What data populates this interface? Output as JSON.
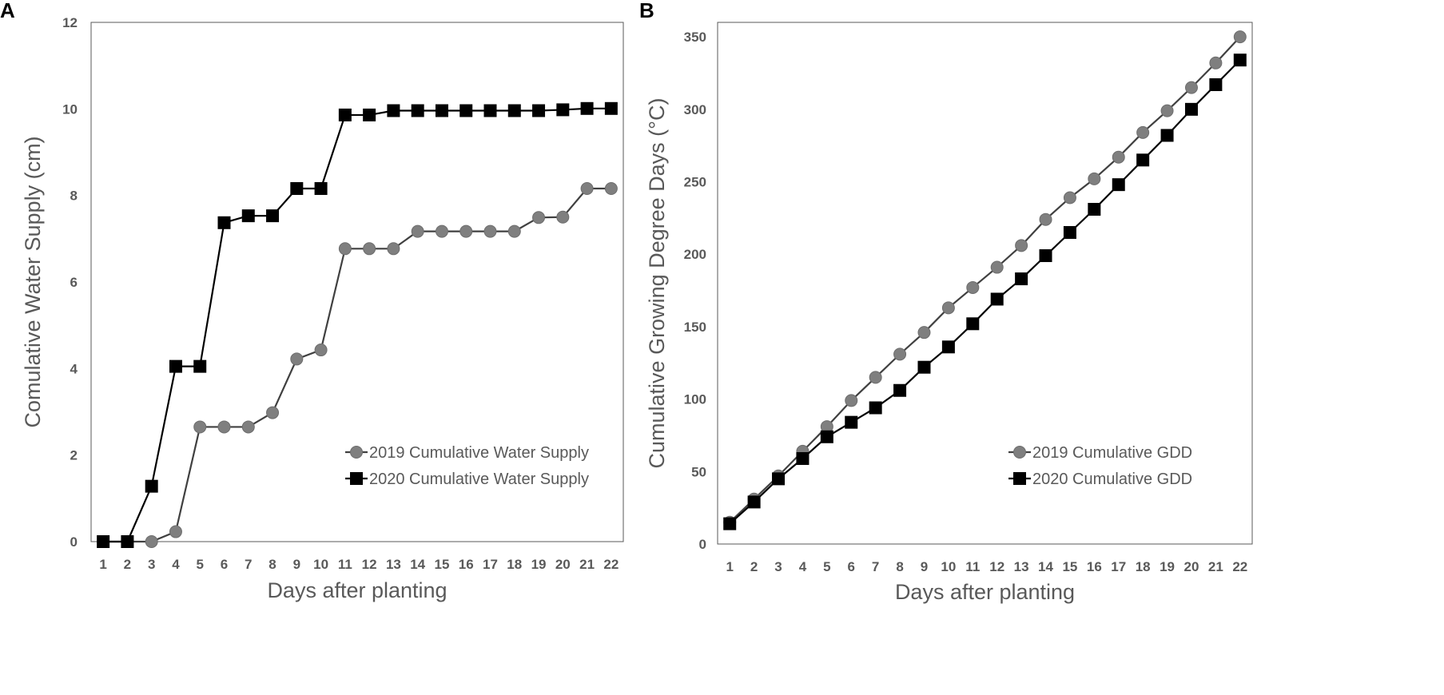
{
  "chart_data": [
    {
      "type": "line",
      "panel": "A",
      "title": "",
      "xlabel": "Days after planting",
      "ylabel": "Comulative Water Supply (cm)",
      "categories": [
        "1",
        "2",
        "3",
        "4",
        "5",
        "6",
        "7",
        "8",
        "9",
        "10",
        "11",
        "12",
        "13",
        "14",
        "15",
        "16",
        "17",
        "18",
        "19",
        "20",
        "21",
        "22"
      ],
      "ylim": [
        0,
        12
      ],
      "yticks": [
        "0",
        "2",
        "4",
        "6",
        "8",
        "10",
        "12"
      ],
      "grid": false,
      "legend_position": "bottom-right",
      "series": [
        {
          "name": "2019 Cumulative Water Supply",
          "marker": "circle",
          "color": "#7f7f7f",
          "line_color": "#404040",
          "values": [
            0,
            0,
            0,
            0.23,
            2.65,
            2.65,
            2.65,
            2.98,
            4.22,
            4.43,
            6.77,
            6.77,
            6.77,
            7.17,
            7.17,
            7.17,
            7.17,
            7.17,
            7.49,
            7.5,
            8.16,
            8.16
          ]
        },
        {
          "name": "2020 Cumulative Water Supply",
          "marker": "square",
          "color": "#000000",
          "line_color": "#000000",
          "values": [
            0,
            0,
            1.28,
            4.05,
            4.05,
            7.37,
            7.53,
            7.53,
            8.16,
            8.16,
            9.86,
            9.86,
            9.96,
            9.96,
            9.96,
            9.96,
            9.96,
            9.96,
            9.96,
            9.98,
            10.01,
            10.01
          ]
        }
      ]
    },
    {
      "type": "line",
      "panel": "B",
      "title": "",
      "xlabel": "Days after planting",
      "ylabel": "Cumulative Growing Degree Days (°C)",
      "categories": [
        "1",
        "2",
        "3",
        "4",
        "5",
        "6",
        "7",
        "8",
        "9",
        "10",
        "11",
        "12",
        "13",
        "14",
        "15",
        "16",
        "17",
        "18",
        "19",
        "20",
        "21",
        "22"
      ],
      "ylim": [
        0,
        360
      ],
      "yticks": [
        "0",
        "50",
        "100",
        "150",
        "200",
        "250",
        "300",
        "350"
      ],
      "grid": false,
      "legend_position": "bottom-right",
      "series": [
        {
          "name": "2019 Cumulative GDD",
          "marker": "circle",
          "color": "#7f7f7f",
          "line_color": "#404040",
          "values": [
            15,
            31,
            47,
            64,
            81,
            99,
            115,
            131,
            146,
            163,
            177,
            191,
            206,
            224,
            239,
            252,
            267,
            284,
            299,
            315,
            332,
            350
          ]
        },
        {
          "name": "2020 Cumulative GDD",
          "marker": "square",
          "color": "#000000",
          "line_color": "#000000",
          "values": [
            14,
            29,
            45,
            59,
            74,
            84,
            94,
            106,
            122,
            136,
            152,
            169,
            183,
            199,
            215,
            231,
            248,
            265,
            282,
            300,
            317,
            334
          ]
        }
      ]
    }
  ]
}
